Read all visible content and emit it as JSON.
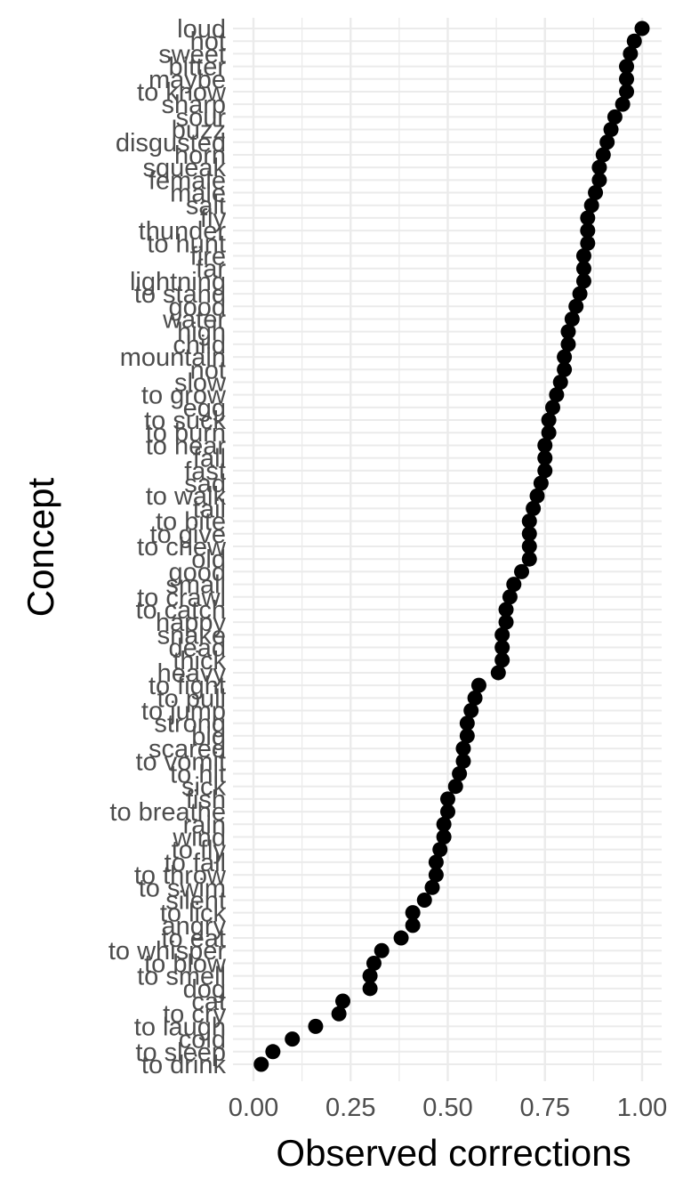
{
  "chart_data": {
    "type": "scatter",
    "xlabel": "Observed corrections",
    "ylabel": "Concept",
    "xlim": [
      0,
      1
    ],
    "x_ticks": [
      "0.00",
      "0.25",
      "0.50",
      "0.75",
      "1.00"
    ],
    "grid": true,
    "marker_color": "#000000",
    "grid_color": "#ebebeb",
    "points": [
      {
        "concept": "loud",
        "value": 1.0
      },
      {
        "concept": "hot",
        "value": 0.98
      },
      {
        "concept": "sweet",
        "value": 0.97
      },
      {
        "concept": "bitter",
        "value": 0.96
      },
      {
        "concept": "maybe",
        "value": 0.96
      },
      {
        "concept": "to know",
        "value": 0.96
      },
      {
        "concept": "sharp",
        "value": 0.95
      },
      {
        "concept": "sour",
        "value": 0.93
      },
      {
        "concept": "buzz",
        "value": 0.92
      },
      {
        "concept": "disgusted",
        "value": 0.91
      },
      {
        "concept": "horn",
        "value": 0.9
      },
      {
        "concept": "squeak",
        "value": 0.89
      },
      {
        "concept": "female",
        "value": 0.89
      },
      {
        "concept": "male",
        "value": 0.88
      },
      {
        "concept": "salt",
        "value": 0.87
      },
      {
        "concept": "fly",
        "value": 0.86
      },
      {
        "concept": "thunder",
        "value": 0.86
      },
      {
        "concept": "to hunt",
        "value": 0.86
      },
      {
        "concept": "fire",
        "value": 0.85
      },
      {
        "concept": "far",
        "value": 0.85
      },
      {
        "concept": "lightning",
        "value": 0.85
      },
      {
        "concept": "to stand",
        "value": 0.84
      },
      {
        "concept": "good",
        "value": 0.83
      },
      {
        "concept": "water",
        "value": 0.82
      },
      {
        "concept": "high",
        "value": 0.81
      },
      {
        "concept": "child",
        "value": 0.81
      },
      {
        "concept": "mountain",
        "value": 0.8
      },
      {
        "concept": "not",
        "value": 0.8
      },
      {
        "concept": "slow",
        "value": 0.79
      },
      {
        "concept": "to grow",
        "value": 0.78
      },
      {
        "concept": "egg",
        "value": 0.77
      },
      {
        "concept": "to suck",
        "value": 0.76
      },
      {
        "concept": "to burn",
        "value": 0.76
      },
      {
        "concept": "to hear",
        "value": 0.75
      },
      {
        "concept": "fall",
        "value": 0.75
      },
      {
        "concept": "fast",
        "value": 0.75
      },
      {
        "concept": "sad",
        "value": 0.74
      },
      {
        "concept": "to walk",
        "value": 0.73
      },
      {
        "concept": "tail",
        "value": 0.72
      },
      {
        "concept": "to bite",
        "value": 0.71
      },
      {
        "concept": "to give",
        "value": 0.71
      },
      {
        "concept": "to chew",
        "value": 0.71
      },
      {
        "concept": "old",
        "value": 0.71
      },
      {
        "concept": "good",
        "value": 0.69
      },
      {
        "concept": "small",
        "value": 0.67
      },
      {
        "concept": "to crawl",
        "value": 0.66
      },
      {
        "concept": "to catch",
        "value": 0.65
      },
      {
        "concept": "happy",
        "value": 0.65
      },
      {
        "concept": "snake",
        "value": 0.64
      },
      {
        "concept": "dead",
        "value": 0.64
      },
      {
        "concept": "thick",
        "value": 0.64
      },
      {
        "concept": "heavy",
        "value": 0.63
      },
      {
        "concept": "to fight",
        "value": 0.58
      },
      {
        "concept": "to pull",
        "value": 0.57
      },
      {
        "concept": "to jump",
        "value": 0.56
      },
      {
        "concept": "strong",
        "value": 0.55
      },
      {
        "concept": "big",
        "value": 0.55
      },
      {
        "concept": "scared",
        "value": 0.54
      },
      {
        "concept": "to vomit",
        "value": 0.54
      },
      {
        "concept": "to hit",
        "value": 0.53
      },
      {
        "concept": "sick",
        "value": 0.52
      },
      {
        "concept": "fish",
        "value": 0.5
      },
      {
        "concept": "to breathe",
        "value": 0.5
      },
      {
        "concept": "rain",
        "value": 0.49
      },
      {
        "concept": "wind",
        "value": 0.49
      },
      {
        "concept": "to fly",
        "value": 0.48
      },
      {
        "concept": "to fall",
        "value": 0.47
      },
      {
        "concept": "to throw",
        "value": 0.47
      },
      {
        "concept": "to swim",
        "value": 0.46
      },
      {
        "concept": "silent",
        "value": 0.44
      },
      {
        "concept": "to lick",
        "value": 0.41
      },
      {
        "concept": "angry",
        "value": 0.41
      },
      {
        "concept": "to eat",
        "value": 0.38
      },
      {
        "concept": "to whisper",
        "value": 0.33
      },
      {
        "concept": "to blow",
        "value": 0.31
      },
      {
        "concept": "to smell",
        "value": 0.3
      },
      {
        "concept": "dog",
        "value": 0.3
      },
      {
        "concept": "cat",
        "value": 0.23
      },
      {
        "concept": "to cry",
        "value": 0.22
      },
      {
        "concept": "to laugh",
        "value": 0.16
      },
      {
        "concept": "cold",
        "value": 0.1
      },
      {
        "concept": "to sleep",
        "value": 0.05
      },
      {
        "concept": "to drink",
        "value": 0.02
      }
    ]
  }
}
